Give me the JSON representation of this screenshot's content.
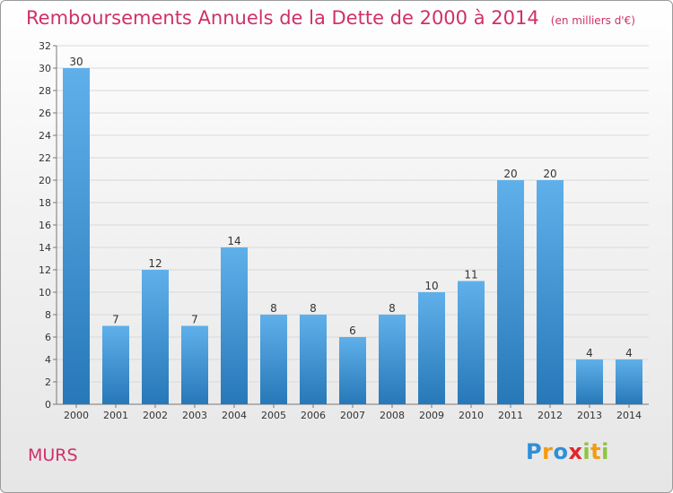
{
  "header": {
    "title": "Remboursements Annuels de la Dette de 2000 à 2014",
    "subtitle": "(en milliers d'€)"
  },
  "footer": {
    "commune": "MURS",
    "logo_letters": [
      "P",
      "r",
      "o",
      "x",
      "i",
      "t",
      "i"
    ]
  },
  "colors": {
    "title": "#d0306a",
    "bar_top": "#5fb0ea",
    "bar_bottom": "#2778b8",
    "grid": "#d9d9d9"
  },
  "chart_data": {
    "type": "bar",
    "title": "Remboursements Annuels de la Dette de 2000 à 2014",
    "subtitle": "(en milliers d'€)",
    "categories": [
      "2000",
      "2001",
      "2002",
      "2003",
      "2004",
      "2005",
      "2006",
      "2007",
      "2008",
      "2009",
      "2010",
      "2011",
      "2012",
      "2013",
      "2014"
    ],
    "values": [
      30,
      7,
      12,
      7,
      14,
      8,
      8,
      6,
      8,
      10,
      11,
      20,
      20,
      4,
      4
    ],
    "ylim": [
      0,
      32
    ],
    "yticks": [
      0,
      2,
      4,
      6,
      8,
      10,
      12,
      14,
      16,
      18,
      20,
      22,
      24,
      26,
      28,
      30,
      32
    ],
    "grid": true,
    "xlabel": "",
    "ylabel": ""
  }
}
